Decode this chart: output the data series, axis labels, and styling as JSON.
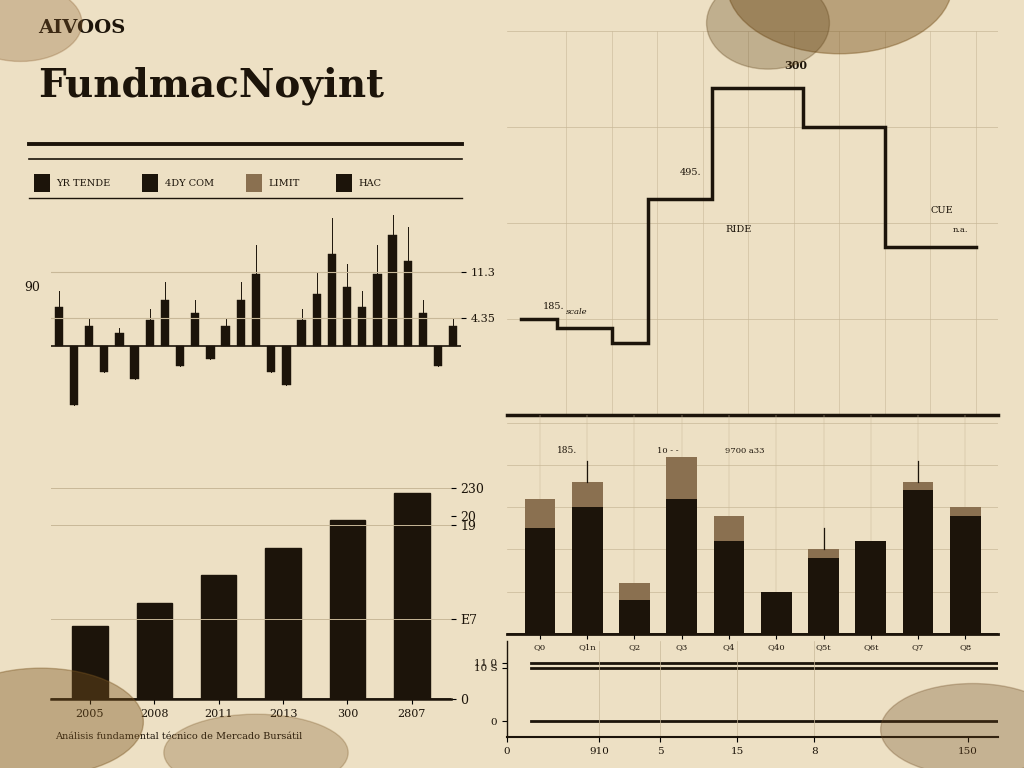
{
  "bg_color_left": "#ede0c4",
  "bg_color_right": "#d9cba8",
  "title_line1": "AIVOOS",
  "title_line2": "FundmacNoyint",
  "legend_items": [
    "YR TENDE",
    "4DY COM",
    "LIMIT",
    "HAC"
  ],
  "candlestick_values": [
    6,
    -9,
    3,
    -4,
    2,
    -5,
    4,
    7,
    -3,
    5,
    -2,
    3,
    7,
    11,
    -4,
    -6,
    4,
    8,
    14,
    9,
    6,
    11,
    17,
    13,
    5,
    -3,
    3
  ],
  "bar_left_values": [
    8.0,
    10.5,
    13.5,
    16.5,
    19.5,
    22.5
  ],
  "bar_left_years": [
    "2005",
    "2008",
    "2011",
    "2013",
    "300",
    "2807"
  ],
  "right_bar_tan": [
    32,
    36,
    12,
    42,
    28,
    0,
    20,
    0,
    36,
    30
  ],
  "right_bar_black": [
    25,
    30,
    8,
    32,
    22,
    10,
    18,
    22,
    34,
    28
  ],
  "ink_color": "#1c140a",
  "tan_color": "#8a7050",
  "grid_color": "#c8b898",
  "subtitle_text": "Análisis fundamental técnico de Mercado Bursátil"
}
